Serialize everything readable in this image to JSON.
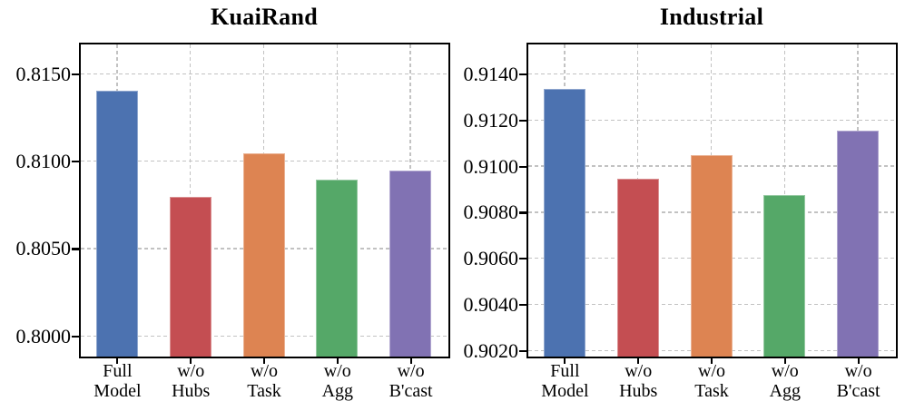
{
  "figure": {
    "description": "Ablation study bar charts on two datasets",
    "background": "#ffffff",
    "axis_color": "#000000",
    "grid_color": "#c2c2c2",
    "bar_edge_color": "rgba(255,255,255,0.38)"
  },
  "chart_data": [
    {
      "type": "bar",
      "title": "KuaiRand",
      "categories": [
        "Full\nModel",
        "w/o\nHubs",
        "w/o\nTask",
        "w/o\nAgg",
        "w/o\nB'cast"
      ],
      "values": [
        0.8141,
        0.808,
        0.8105,
        0.809,
        0.8095
      ],
      "bar_colors": [
        "#4C72B0",
        "#C44E52",
        "#DD8452",
        "#55A868",
        "#8172B3"
      ],
      "yticks": [
        "0.8000",
        "0.8050",
        "0.8100",
        "0.8150"
      ],
      "ylim": [
        0.7989,
        0.8167
      ],
      "xlabel": "",
      "ylabel": "",
      "grid": "dashed-both-axes",
      "legend": "none"
    },
    {
      "type": "bar",
      "title": "Industrial",
      "categories": [
        "Full\nModel",
        "w/o\nHubs",
        "w/o\nTask",
        "w/o\nAgg",
        "w/o\nB'cast"
      ],
      "values": [
        0.9134,
        0.9095,
        0.9105,
        0.9088,
        0.9116
      ],
      "bar_colors": [
        "#4C72B0",
        "#C44E52",
        "#DD8452",
        "#55A868",
        "#8172B3"
      ],
      "yticks": [
        "0.9020",
        "0.9040",
        "0.9060",
        "0.9080",
        "0.9100",
        "0.9120",
        "0.9140"
      ],
      "ylim": [
        0.9018,
        0.9153
      ],
      "xlabel": "",
      "ylabel": "",
      "grid": "dashed-both-axes",
      "legend": "none"
    }
  ]
}
